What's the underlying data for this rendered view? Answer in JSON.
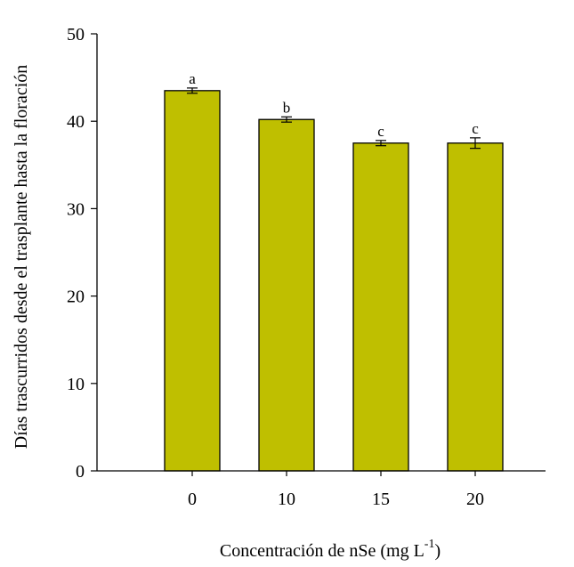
{
  "chart_data": {
    "type": "bar",
    "categories": [
      "0",
      "10",
      "15",
      "20"
    ],
    "values": [
      43.5,
      40.2,
      37.5,
      37.5
    ],
    "errors": [
      0.3,
      0.3,
      0.3,
      0.6
    ],
    "significance_letters": [
      "a",
      "b",
      "c",
      "c"
    ],
    "title": "",
    "xlabel": "Concentración de nSe (mg L",
    "xlabel_superscript": "-1",
    "xlabel_suffix": ")",
    "ylabel": "Días trascurridos desde el trasplante hasta la floración",
    "ylim": [
      0,
      50
    ],
    "yticks": [
      "0",
      "10",
      "20",
      "30",
      "40",
      "50"
    ],
    "bar_color": "#bfbf00",
    "grid": false,
    "legend": "none"
  }
}
